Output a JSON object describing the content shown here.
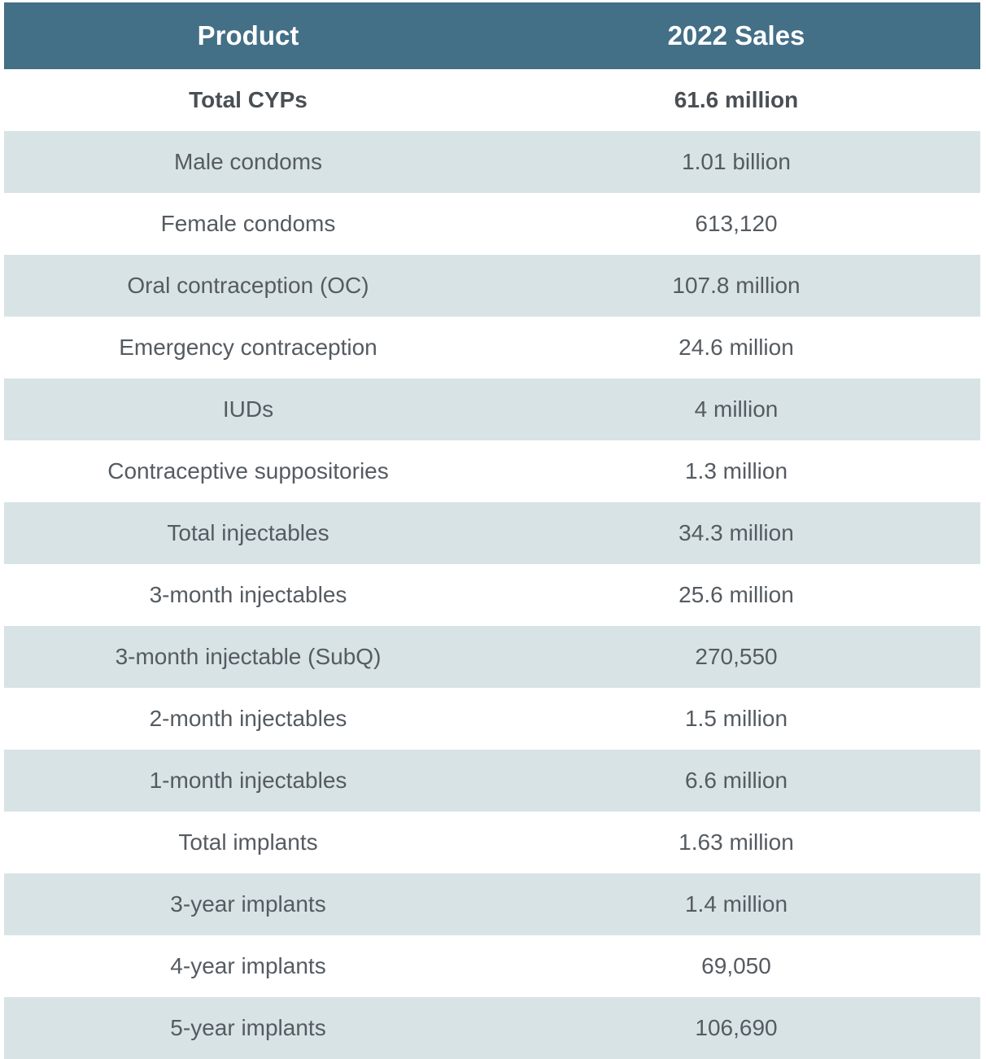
{
  "table": {
    "headers": [
      "Product",
      "2022 Sales"
    ],
    "rows": [
      {
        "product": "Total CYPs",
        "sales": "61.6 million",
        "bold": true
      },
      {
        "product": "Male condoms",
        "sales": "1.01 billion"
      },
      {
        "product": "Female condoms",
        "sales": "613,120"
      },
      {
        "product": "Oral contraception (OC)",
        "sales": "107.8 million"
      },
      {
        "product": "Emergency contraception",
        "sales": "24.6 million"
      },
      {
        "product": "IUDs",
        "sales": "4 million"
      },
      {
        "product": "Contraceptive suppositories",
        "sales": "1.3 million"
      },
      {
        "product": "Total injectables",
        "sales": "34.3 million"
      },
      {
        "product": "3-month injectables",
        "sales": "25.6 million"
      },
      {
        "product": "3-month injectable (SubQ)",
        "sales": "270,550"
      },
      {
        "product": "2-month injectables",
        "sales": "1.5 million"
      },
      {
        "product": "1-month injectables",
        "sales": "6.6 million"
      },
      {
        "product": "Total implants",
        "sales": "1.63 million"
      },
      {
        "product": "3-year implants",
        "sales": "1.4 million"
      },
      {
        "product": "4-year implants",
        "sales": "69,050"
      },
      {
        "product": "5-year implants",
        "sales": "106,690"
      }
    ]
  },
  "colors": {
    "header_bg": "#436f87",
    "alt_row_bg": "#d8e3e6",
    "text": "#555b61"
  }
}
